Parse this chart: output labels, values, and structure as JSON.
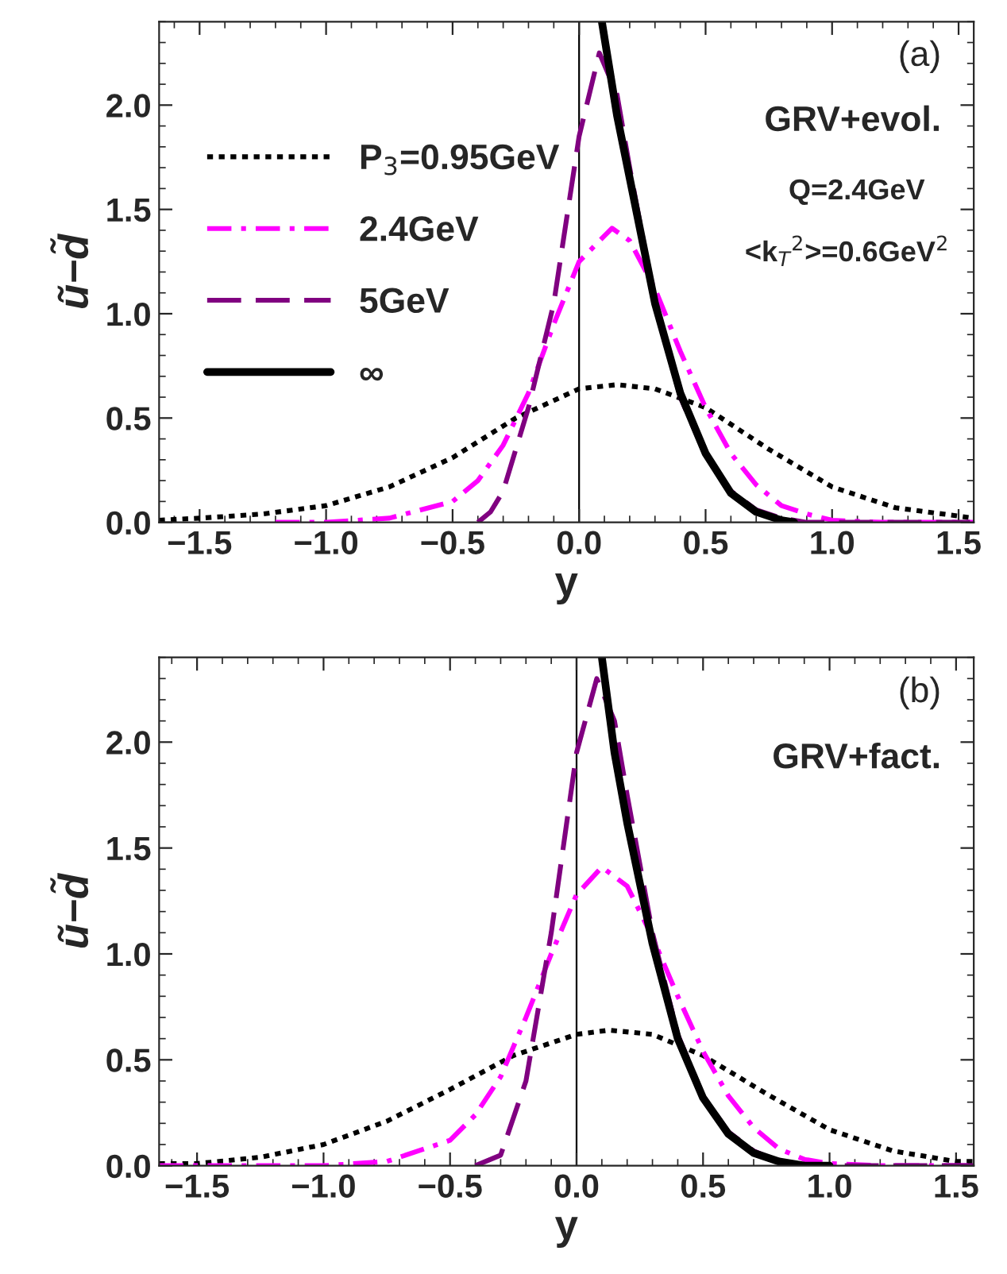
{
  "chart_data": [
    {
      "type": "line",
      "xlabel": "y",
      "ylabel": "ũ−d̃",
      "xlim": [
        -1.66,
        1.56
      ],
      "ylim": [
        0,
        2.4
      ],
      "xticks": [
        {
          "value": -1.5,
          "label": "−1.5"
        },
        {
          "value": -1.0,
          "label": "−1.0"
        },
        {
          "value": -0.5,
          "label": "−0.5"
        },
        {
          "value": 0,
          "label": "0.0"
        },
        {
          "value": 0.5,
          "label": "0.5"
        },
        {
          "value": 1.0,
          "label": "1.0"
        },
        {
          "value": 1.5,
          "label": "1.5"
        }
      ],
      "yticks": [
        {
          "value": 0,
          "label": "0.0"
        },
        {
          "value": 0.5,
          "label": "0.5"
        },
        {
          "value": 1.0,
          "label": "1.0"
        },
        {
          "value": 1.5,
          "label": "1.5"
        },
        {
          "value": 2.0,
          "label": "2.0"
        }
      ],
      "annotations": [
        "(a)",
        "GRV+evol.",
        "Q=2.4GeV",
        "<k$_{T}$$^{2}$>=0.6GeV$^{2}$"
      ],
      "ref_lines": [
        {
          "axis": "x",
          "value": 0,
          "color": "#000000"
        }
      ],
      "legend": "top left",
      "grid": false,
      "series": [
        {
          "name": "P$_{3}$=0.95GeV",
          "color": "#000000",
          "line_style": "dotted",
          "x": [
            -1.66,
            -1.5,
            -1.25,
            -1.0,
            -0.75,
            -0.5,
            -0.25,
            0,
            0.15,
            0.3,
            0.5,
            0.75,
            1.0,
            1.25,
            1.5,
            1.56
          ],
          "values": [
            0.01,
            0.02,
            0.04,
            0.08,
            0.17,
            0.31,
            0.5,
            0.64,
            0.66,
            0.64,
            0.55,
            0.35,
            0.17,
            0.07,
            0.03,
            0.02
          ]
        },
        {
          "name": "2.4GeV",
          "color": "#ff00ff",
          "line_style": "dashdot",
          "x": [
            -1.2,
            -1.0,
            -0.75,
            -0.5,
            -0.4,
            -0.3,
            -0.2,
            -0.1,
            0,
            0.13,
            0.2,
            0.3,
            0.4,
            0.5,
            0.6,
            0.7,
            0.8,
            0.9,
            1.0,
            1.2,
            1.56
          ],
          "values": [
            0,
            0,
            0.02,
            0.1,
            0.2,
            0.37,
            0.62,
            0.95,
            1.25,
            1.41,
            1.35,
            1.12,
            0.82,
            0.55,
            0.33,
            0.18,
            0.08,
            0.04,
            0.01,
            0,
            0
          ]
        },
        {
          "name": "5GeV",
          "color": "#800080",
          "line_style": "dashed",
          "x": [
            -0.4,
            -0.35,
            -0.3,
            -0.2,
            -0.1,
            0,
            0.08,
            0.15,
            0.2,
            0.3,
            0.4,
            0.5,
            0.6,
            0.7,
            0.8,
            0.9,
            1.2,
            1.56
          ],
          "values": [
            0,
            0.05,
            0.15,
            0.55,
            1.05,
            1.85,
            2.25,
            2.05,
            1.7,
            1.05,
            0.6,
            0.32,
            0.15,
            0.06,
            0.02,
            0,
            0,
            0
          ]
        },
        {
          "name": "∞",
          "color": "#000000",
          "line_style": "solid",
          "x": [
            0.09,
            0.15,
            0.2,
            0.3,
            0.4,
            0.5,
            0.6,
            0.7,
            0.8,
            0.85
          ],
          "values": [
            2.4,
            1.95,
            1.65,
            1.05,
            0.62,
            0.33,
            0.14,
            0.05,
            0.01,
            0
          ]
        }
      ]
    },
    {
      "type": "line",
      "xlabel": "y",
      "ylabel": "ũ−d̃",
      "xlim": [
        -1.65,
        1.57
      ],
      "ylim": [
        0,
        2.4
      ],
      "xticks": [
        {
          "value": -1.5,
          "label": "−1.5"
        },
        {
          "value": -1.0,
          "label": "−1.0"
        },
        {
          "value": -0.5,
          "label": "−0.5"
        },
        {
          "value": 0,
          "label": "0.0"
        },
        {
          "value": 0.5,
          "label": "0.5"
        },
        {
          "value": 1.0,
          "label": "1.0"
        },
        {
          "value": 1.5,
          "label": "1.5"
        }
      ],
      "yticks": [
        {
          "value": 0,
          "label": "0.0"
        },
        {
          "value": 0.5,
          "label": "0.5"
        },
        {
          "value": 1.0,
          "label": "1.0"
        },
        {
          "value": 1.5,
          "label": "1.5"
        },
        {
          "value": 2.0,
          "label": "2.0"
        }
      ],
      "annotations": [
        "(b)",
        "GRV+fact."
      ],
      "ref_lines": [
        {
          "axis": "x",
          "value": 0,
          "color": "#000000"
        }
      ],
      "grid": false,
      "series": [
        {
          "color": "#000000",
          "line_style": "dotted",
          "x": [
            -1.65,
            -1.5,
            -1.25,
            -1.0,
            -0.75,
            -0.5,
            -0.25,
            0,
            0.13,
            0.3,
            0.5,
            0.75,
            1.0,
            1.25,
            1.5,
            1.57
          ],
          "values": [
            0.01,
            0.01,
            0.04,
            0.1,
            0.21,
            0.36,
            0.52,
            0.62,
            0.64,
            0.62,
            0.52,
            0.34,
            0.17,
            0.07,
            0.02,
            0.02
          ]
        },
        {
          "color": "#ff00ff",
          "line_style": "dashdot",
          "x": [
            -1.65,
            -1.0,
            -0.75,
            -0.5,
            -0.4,
            -0.3,
            -0.2,
            -0.1,
            0,
            0.1,
            0.2,
            0.3,
            0.4,
            0.5,
            0.6,
            0.7,
            0.8,
            0.9,
            1.0,
            1.2,
            1.57
          ],
          "values": [
            0,
            0,
            0.02,
            0.12,
            0.24,
            0.42,
            0.7,
            1.0,
            1.28,
            1.41,
            1.32,
            1.08,
            0.8,
            0.54,
            0.33,
            0.18,
            0.08,
            0.03,
            0.01,
            0,
            0
          ]
        },
        {
          "color": "#800080",
          "line_style": "dashed",
          "x": [
            -0.4,
            -0.3,
            -0.2,
            -0.1,
            0,
            0.08,
            0.15,
            0.2,
            0.3,
            0.4,
            0.5,
            0.6,
            0.7,
            0.8,
            0.9,
            1.2,
            1.57
          ],
          "values": [
            0,
            0.05,
            0.4,
            1.1,
            1.95,
            2.3,
            2.1,
            1.75,
            1.1,
            0.62,
            0.33,
            0.16,
            0.07,
            0.02,
            0,
            0,
            0
          ]
        },
        {
          "color": "#000000",
          "line_style": "solid",
          "x": [
            0.1,
            0.15,
            0.2,
            0.3,
            0.4,
            0.5,
            0.6,
            0.7,
            0.8,
            0.9,
            1.0
          ],
          "values": [
            2.4,
            1.95,
            1.62,
            1.05,
            0.6,
            0.32,
            0.15,
            0.06,
            0.02,
            0,
            0
          ]
        }
      ]
    }
  ]
}
